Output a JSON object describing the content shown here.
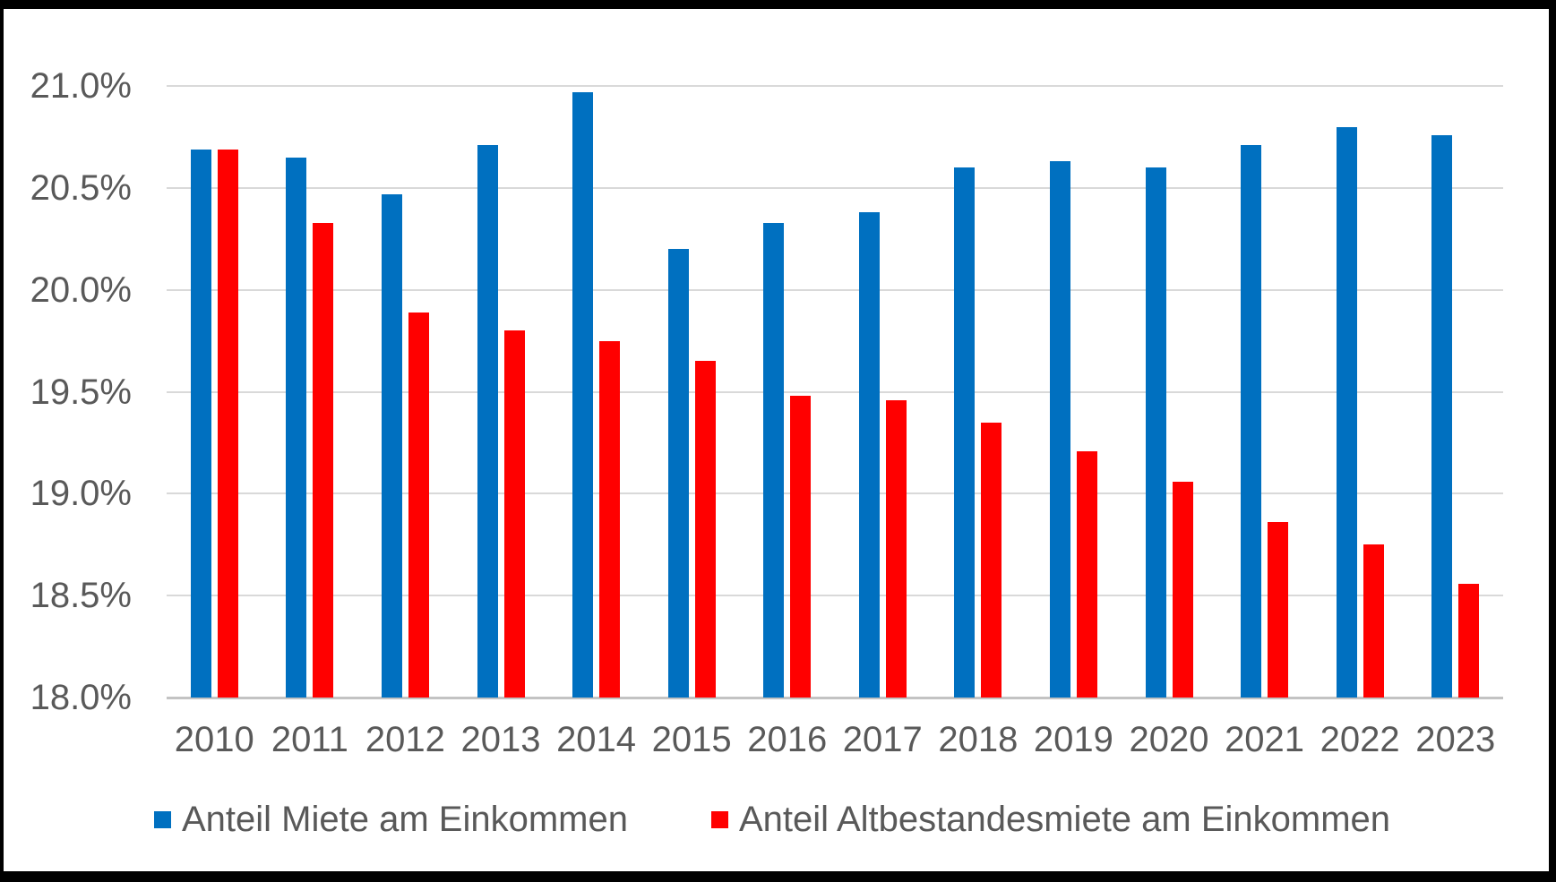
{
  "chart_data": {
    "type": "bar",
    "title": "",
    "xlabel": "",
    "ylabel": "",
    "categories": [
      "2010",
      "2011",
      "2012",
      "2013",
      "2014",
      "2015",
      "2016",
      "2017",
      "2018",
      "2019",
      "2020",
      "2021",
      "2022",
      "2023"
    ],
    "series": [
      {
        "name": "Anteil Miete am Einkommen",
        "color": "#0070C0",
        "values": [
          20.69,
          20.65,
          20.47,
          20.71,
          20.97,
          20.2,
          20.33,
          20.38,
          20.6,
          20.63,
          20.6,
          20.71,
          20.8,
          20.76
        ]
      },
      {
        "name": "Anteil Altbestandesmiete am Einkommen",
        "color": "#FF0000",
        "values": [
          20.69,
          20.33,
          19.89,
          19.8,
          19.75,
          19.65,
          19.48,
          19.46,
          19.35,
          19.21,
          19.06,
          18.86,
          18.75,
          18.56
        ]
      }
    ],
    "ylim": [
      18.0,
      21.0
    ],
    "yticks": [
      {
        "value": 21.0,
        "label": "21.0%"
      },
      {
        "value": 20.5,
        "label": "20.5%"
      },
      {
        "value": 20.0,
        "label": "20.0%"
      },
      {
        "value": 19.5,
        "label": "19.5%"
      },
      {
        "value": 19.0,
        "label": "19.0%"
      },
      {
        "value": 18.5,
        "label": "18.5%"
      },
      {
        "value": 18.0,
        "label": "18.0%"
      }
    ],
    "grid": "horizontal",
    "legend_position": "bottom"
  },
  "colors": {
    "gridline": "#D9D9D9",
    "axis_line": "#C3C3C3",
    "text": "#595959",
    "page_background": "#FFFFFF",
    "frame_border": "#000000"
  }
}
